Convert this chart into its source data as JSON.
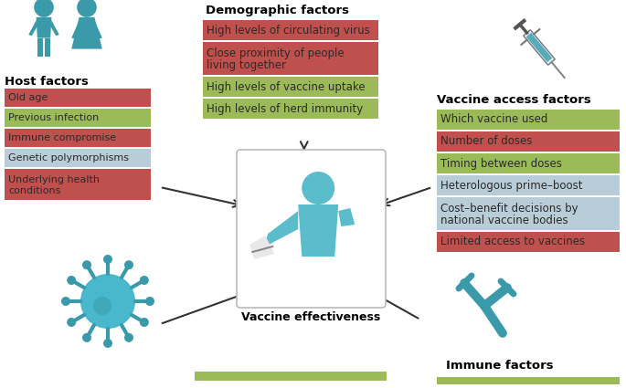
{
  "bg_color": "#ffffff",
  "teal": "#3a9aaa",
  "teal_light": "#5bbccc",
  "red_bg": "#c0504d",
  "green_bg": "#9bbb59",
  "blue_grey_bg": "#b8cdd8",
  "text_dark": "#333333",
  "host_factors": {
    "title": "Host factors",
    "items": [
      "Old age",
      "Previous infection",
      "Immune compromise",
      "Genetic polymorphisms",
      "Underlying health\nconditions"
    ],
    "colors": [
      "#c0504d",
      "#9bbb59",
      "#c0504d",
      "#b8cdd8",
      "#c0504d"
    ]
  },
  "demographic_factors": {
    "title": "Demographic factors",
    "items": [
      "High levels of circulating virus",
      "Close proximity of people\nliving together",
      "High levels of vaccine uptake",
      "High levels of herd immunity"
    ],
    "colors": [
      "#c0504d",
      "#c0504d",
      "#9bbb59",
      "#9bbb59"
    ]
  },
  "vaccine_access_factors": {
    "title": "Vaccine access factors",
    "items": [
      "Which vaccine used",
      "Number of doses",
      "Timing between doses",
      "Heterologous prime–boost",
      "Cost–benefit decisions by\nnational vaccine bodies",
      "Limited access to vaccines"
    ],
    "colors": [
      "#9bbb59",
      "#c0504d",
      "#9bbb59",
      "#b8cdd8",
      "#b8cdd8",
      "#c0504d"
    ]
  },
  "center_title": "Vaccine effectiveness",
  "immune_factors_title": "Immune factors",
  "bottom_bar_color": "#9bbb59"
}
